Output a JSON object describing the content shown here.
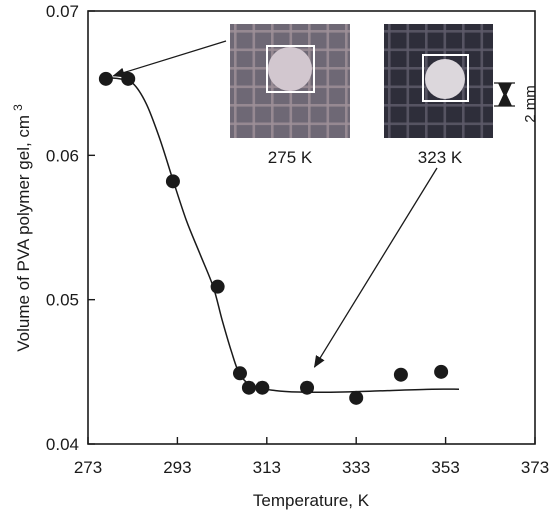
{
  "chart_data": {
    "type": "scatter",
    "title": "",
    "xlabel": "Temperature, K",
    "ylabel": "Volume of PVA polymer gel, cm",
    "ylabel_superscript": "3",
    "xlim": [
      273,
      373
    ],
    "ylim": [
      0.04,
      0.07
    ],
    "x_ticks": [
      273,
      293,
      313,
      333,
      353,
      373
    ],
    "y_ticks": [
      0.04,
      0.05,
      0.06,
      0.07
    ],
    "y_tick_labels": [
      "0.04",
      "0.05",
      "0.06",
      "0.07"
    ],
    "grid": false,
    "series": [
      {
        "marker": "filled-circle",
        "color": "#1a1a1a",
        "points": [
          {
            "x": 277,
            "y": 0.0653
          },
          {
            "x": 282,
            "y": 0.0653
          },
          {
            "x": 292,
            "y": 0.0582
          },
          {
            "x": 302,
            "y": 0.0509
          },
          {
            "x": 307,
            "y": 0.0449
          },
          {
            "x": 309,
            "y": 0.0439
          },
          {
            "x": 312,
            "y": 0.0439
          },
          {
            "x": 322,
            "y": 0.0439
          },
          {
            "x": 333,
            "y": 0.0432
          },
          {
            "x": 343,
            "y": 0.0448
          },
          {
            "x": 352,
            "y": 0.045
          }
        ]
      }
    ],
    "fit_curve": [
      {
        "x": 276,
        "y": 0.0654
      },
      {
        "x": 280,
        "y": 0.0653
      },
      {
        "x": 283,
        "y": 0.065
      },
      {
        "x": 286,
        "y": 0.0636
      },
      {
        "x": 289,
        "y": 0.0612
      },
      {
        "x": 292,
        "y": 0.0583
      },
      {
        "x": 295,
        "y": 0.0555
      },
      {
        "x": 298,
        "y": 0.0532
      },
      {
        "x": 301,
        "y": 0.0509
      },
      {
        "x": 303,
        "y": 0.0486
      },
      {
        "x": 305,
        "y": 0.0465
      },
      {
        "x": 307,
        "y": 0.0448
      },
      {
        "x": 310,
        "y": 0.044
      },
      {
        "x": 315,
        "y": 0.0437
      },
      {
        "x": 320,
        "y": 0.0436
      },
      {
        "x": 330,
        "y": 0.0436
      },
      {
        "x": 340,
        "y": 0.0437
      },
      {
        "x": 350,
        "y": 0.0438
      },
      {
        "x": 356,
        "y": 0.0438
      }
    ],
    "annotations": [
      {
        "label": "275 K",
        "points_to": {
          "x": 276,
          "y": 0.0653
        }
      },
      {
        "label": "323 K",
        "points_to": {
          "x": 323,
          "y": 0.0445
        }
      }
    ],
    "scale_bar_label": "2 mm"
  },
  "colors": {
    "ink": "#1a1a1a",
    "photo_background": "#2e2e3a",
    "photo_grid_warm": "#9d8f98",
    "photo_grid_cool": "#5d5a6a",
    "sample_cold": "#d2c7cf",
    "sample_warm": "#dcd7dc",
    "highlight_box": "#ffffff"
  }
}
